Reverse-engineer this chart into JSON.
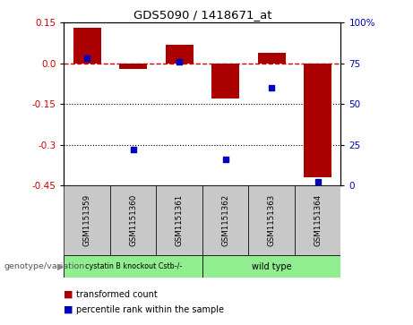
{
  "title": "GDS5090 / 1418671_at",
  "samples": [
    "GSM1151359",
    "GSM1151360",
    "GSM1151361",
    "GSM1151362",
    "GSM1151363",
    "GSM1151364"
  ],
  "red_bars": [
    0.13,
    -0.02,
    0.07,
    -0.13,
    0.04,
    -0.42
  ],
  "blue_pcts": [
    78,
    22,
    76,
    16,
    60,
    2
  ],
  "ylim_left": [
    -0.45,
    0.15
  ],
  "ylim_right": [
    0,
    100
  ],
  "left_ticks": [
    0.15,
    0.0,
    -0.15,
    -0.3,
    -0.45
  ],
  "right_ticks": [
    100,
    75,
    50,
    25,
    0
  ],
  "group1_label": "cystatin B knockout Cstb-/-",
  "group2_label": "wild type",
  "group_label_text": "genotype/variation",
  "legend1": "transformed count",
  "legend2": "percentile rank within the sample",
  "bar_color": "#AA0000",
  "dot_color": "#0000BB",
  "zero_line_color": "#CC0000",
  "bg_color": "#FFFFFF",
  "bar_width": 0.6,
  "group1_color": "#90EE90",
  "group2_color": "#90EE90",
  "box_color": "#C8C8C8"
}
